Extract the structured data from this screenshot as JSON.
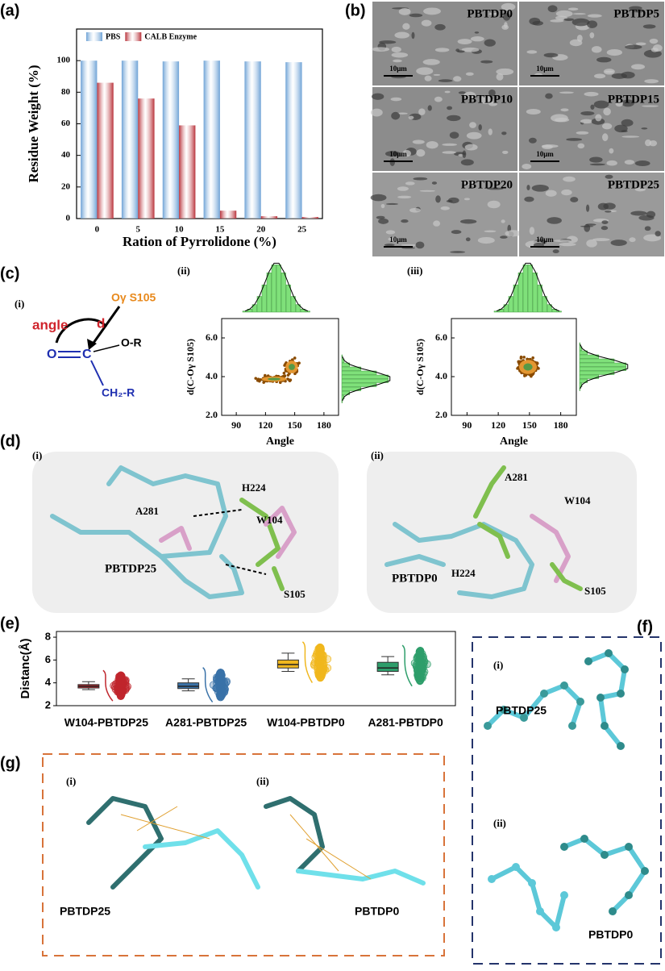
{
  "panel_labels": [
    "(a)",
    "(b)",
    "(c)",
    "(d)",
    "(e)",
    "(f)",
    "(g)"
  ],
  "chart_data": [
    {
      "type": "bar",
      "ylabel": "Residue Weight (%)",
      "xlabel": "Ration of Pyrrolidone (%)",
      "categories": [
        "0",
        "5",
        "10",
        "15",
        "20",
        "25"
      ],
      "series": [
        {
          "name": "PBS",
          "color": "#6fa3d6",
          "values": [
            100,
            100,
            99.5,
            100,
            99.5,
            99
          ]
        },
        {
          "name": "CALB Enzyme",
          "color": "#b9333b",
          "values": [
            86,
            76,
            59,
            5,
            1.5,
            1
          ]
        }
      ],
      "ylim": [
        0,
        120
      ],
      "yticks": [
        0,
        20,
        40,
        60,
        80,
        100
      ],
      "legend": "top"
    },
    {
      "type": "scatter",
      "label": "(ii)",
      "xlabel": "Angle",
      "ylabel": "d(C-Oγ S105)",
      "xlim": [
        75,
        195
      ],
      "xticks": [
        90,
        120,
        150,
        180
      ],
      "ylim": [
        2,
        7
      ],
      "yticks": [
        {
          "value": 2,
          "label": "2.0"
        },
        {
          "value": 4,
          "label": "4.0"
        },
        {
          "value": 6,
          "label": "6.0"
        }
      ]
    },
    {
      "type": "scatter",
      "label": "(iii)",
      "xlabel": "Angle",
      "ylabel": "d(C-Oγ S105)",
      "xlim": [
        75,
        195
      ],
      "xticks": [
        90,
        120,
        150,
        180
      ],
      "ylim": [
        2,
        7
      ],
      "yticks": [
        {
          "value": 2,
          "label": "2.0"
        },
        {
          "value": 4,
          "label": "4.0"
        },
        {
          "value": 6,
          "label": "6.0"
        }
      ]
    },
    {
      "type": "box",
      "ylabel": "Distanc(Å)",
      "categories": [
        "W104-PBTDP25",
        "A281-PBTDP25",
        "W104-PBTDP0",
        "A281-PBTDP0"
      ],
      "colors": [
        "#c0262d",
        "#3a72a8",
        "#f0b71e",
        "#2e9e6b"
      ],
      "min": [
        3.4,
        3.3,
        5.0,
        4.7
      ],
      "q1": [
        3.55,
        3.5,
        5.3,
        5.0
      ],
      "median": [
        3.7,
        3.7,
        5.6,
        5.3
      ],
      "q3": [
        3.85,
        4.0,
        6.0,
        5.8
      ],
      "max": [
        4.1,
        4.35,
        6.6,
        6.3
      ],
      "ylim": [
        2,
        8.5
      ],
      "yticks": [
        2,
        4,
        6,
        8
      ]
    }
  ],
  "sem_images": {
    "labels": [
      "PBTDP0",
      "PBTDP5",
      "PBTDP10",
      "PBTDP15",
      "PBTDP20",
      "PBTDP25"
    ],
    "scale_bar": "10μm"
  },
  "scheme": {
    "label": "(i)",
    "atom_o": "O",
    "atom_c": "C",
    "group_or": "O-R",
    "group_ch2r": "CH₂-R",
    "target": "Oγ S105",
    "angle": "angle",
    "distance": "d"
  },
  "docking": {
    "labels": [
      "(i)",
      "(ii)"
    ],
    "residues_i": [
      "H224",
      "A281",
      "W104",
      "S105"
    ],
    "ligand_i": "PBTDP25",
    "residues_ii": [
      "A281",
      "W104",
      "H224",
      "S105"
    ],
    "ligand_ii": "PBTDP0"
  },
  "dft_f": {
    "labels": [
      "(i)",
      "(ii)"
    ],
    "ligands": [
      "PBTDP25",
      "PBTDP0"
    ]
  },
  "igm_g": {
    "labels": [
      "(i)",
      "(ii)"
    ],
    "ligands": [
      "PBTDP25",
      "PBTDP0"
    ]
  }
}
